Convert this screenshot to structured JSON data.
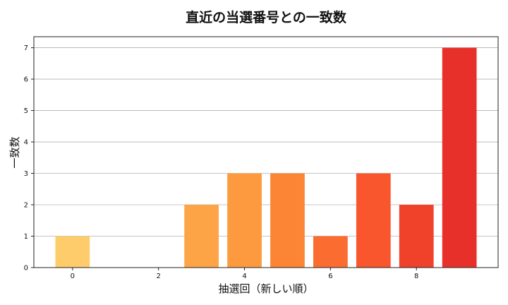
{
  "chart_data": {
    "type": "bar",
    "title": "直近の当選番号との一致数",
    "xlabel": "抽選回（新しい順）",
    "ylabel": "一致数",
    "x": [
      0,
      1,
      2,
      3,
      4,
      5,
      6,
      7,
      8,
      9
    ],
    "values": [
      1,
      0,
      0,
      2,
      3,
      3,
      1,
      3,
      2,
      7
    ],
    "colors": [
      "#fecc6a",
      "#fec35f",
      "#feb852",
      "#fda446",
      "#fd9a3f",
      "#fc8535",
      "#fb6c30",
      "#f9562d",
      "#f0422a",
      "#e8302a"
    ],
    "xticks": [
      0,
      2,
      4,
      6,
      8
    ],
    "yticks": [
      0,
      1,
      2,
      3,
      4,
      5,
      6,
      7
    ],
    "xlim": [
      -0.9,
      9.9
    ],
    "ylim": [
      0,
      7.35
    ],
    "grid": "y-axis"
  }
}
